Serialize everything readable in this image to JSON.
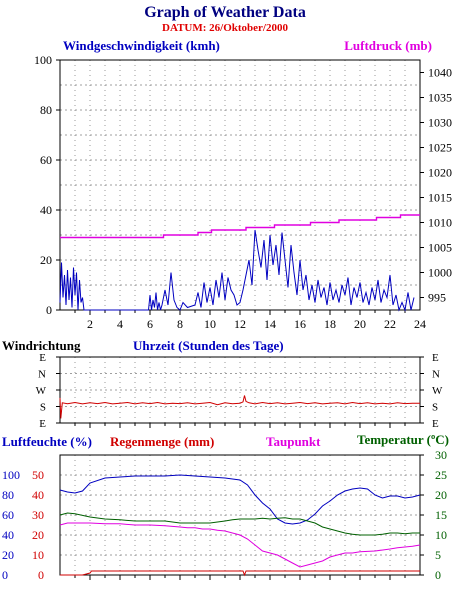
{
  "header": {
    "title": "Graph of Weather Data",
    "subtitle": "DATUM: 26/Oktober/2000"
  },
  "colors": {
    "title": "#000080",
    "subtitle": "#e00000",
    "wind": "#0000c0",
    "pressure": "#e000e0",
    "winddir": "#d00000",
    "humidity": "#0000c0",
    "rain": "#d00000",
    "dewpoint": "#e000e0",
    "temperature": "#006000",
    "grid": "#808080",
    "axis": "#000000"
  },
  "chart_data": [
    {
      "id": "wind_pressure",
      "type": "line",
      "title": "Graph of Weather Data",
      "subtitle": "DATUM: 26/Oktober/2000",
      "xlabel": "Uhrzeit (Stunden des Tage)",
      "xlim": [
        0,
        24
      ],
      "x_ticks": [
        "2",
        "4",
        "6",
        "8",
        "10",
        "12",
        "14",
        "16",
        "18",
        "20",
        "22",
        "24"
      ],
      "grid": true,
      "y_left": {
        "label": "Windgeschwindigkeit (kmh)",
        "range": [
          0,
          100
        ],
        "ticks": [
          "0",
          "20",
          "40",
          "60",
          "80",
          "100"
        ]
      },
      "y_right": {
        "label": "Luftdruck (mb)",
        "range": [
          992.5,
          1042.5
        ],
        "ticks": [
          "995",
          "1000",
          "1005",
          "1010",
          "1015",
          "1020",
          "1025",
          "1030",
          "1035",
          "1040"
        ]
      },
      "series": [
        {
          "name": "Windgeschwindigkeit (kmh)",
          "axis": "left",
          "color": "wind",
          "x": [
            0.0,
            0.1,
            0.2,
            0.3,
            0.4,
            0.5,
            0.6,
            0.7,
            0.8,
            0.9,
            1.0,
            1.1,
            1.2,
            1.3,
            1.4,
            1.5,
            1.6,
            2.0,
            3.0,
            4.0,
            5.0,
            5.9,
            6.0,
            6.1,
            6.2,
            6.3,
            6.4,
            6.5,
            6.6,
            6.7,
            6.8,
            7.0,
            7.2,
            7.4,
            7.6,
            7.8,
            8.0,
            8.2,
            8.5,
            9.0,
            9.2,
            9.4,
            9.6,
            9.8,
            10.0,
            10.2,
            10.4,
            10.6,
            10.8,
            11.0,
            11.2,
            11.4,
            11.6,
            11.8,
            12.0,
            12.2,
            12.4,
            12.6,
            12.8,
            13.0,
            13.2,
            13.4,
            13.6,
            13.8,
            14.0,
            14.2,
            14.4,
            14.6,
            14.8,
            15.0,
            15.2,
            15.4,
            15.6,
            15.8,
            16.0,
            16.2,
            16.4,
            16.6,
            16.8,
            17.0,
            17.2,
            17.4,
            17.6,
            17.8,
            18.0,
            18.2,
            18.4,
            18.6,
            18.8,
            19.0,
            19.2,
            19.4,
            19.6,
            19.8,
            20.0,
            20.2,
            20.4,
            20.6,
            20.8,
            21.0,
            21.2,
            21.4,
            21.6,
            21.8,
            22.0,
            22.2,
            22.4,
            22.6,
            22.8,
            23.0,
            23.2,
            23.4,
            23.6
          ],
          "values": [
            3,
            19,
            5,
            14,
            2,
            16,
            4,
            13,
            1,
            17,
            6,
            15,
            0,
            12,
            3,
            5,
            0,
            0,
            0,
            0,
            0,
            0,
            6,
            0,
            4,
            1,
            7,
            0,
            3,
            0,
            2,
            8,
            2,
            15,
            4,
            1,
            0,
            3,
            1,
            2,
            7,
            1,
            11,
            3,
            9,
            2,
            12,
            5,
            15,
            4,
            13,
            8,
            6,
            2,
            3,
            8,
            14,
            20,
            10,
            32,
            24,
            17,
            28,
            12,
            30,
            18,
            26,
            14,
            31,
            20,
            9,
            26,
            15,
            6,
            20,
            8,
            14,
            4,
            10,
            3,
            12,
            5,
            9,
            2,
            11,
            4,
            8,
            3,
            10,
            6,
            13,
            2,
            9,
            5,
            11,
            3,
            7,
            2,
            9,
            4,
            12,
            3,
            8,
            5,
            14,
            2,
            6,
            0,
            3,
            0,
            7,
            0,
            5
          ]
        },
        {
          "name": "Luftdruck (mb)",
          "axis": "right",
          "color": "pressure",
          "x": [
            0,
            6.9,
            6.9,
            9.2,
            9.2,
            10.1,
            10.1,
            12.4,
            12.4,
            14.3,
            14.3,
            16.7,
            16.7,
            18.6,
            18.6,
            21.1,
            21.1,
            22.7,
            22.7,
            24
          ],
          "values": [
            1007.0,
            1007.0,
            1007.5,
            1007.5,
            1008.0,
            1008.0,
            1008.5,
            1008.5,
            1009.0,
            1009.0,
            1009.5,
            1009.5,
            1010.0,
            1010.0,
            1010.5,
            1010.5,
            1011.0,
            1011.0,
            1011.5,
            1011.5
          ]
        }
      ]
    },
    {
      "id": "wind_direction",
      "type": "line",
      "ylabel": "Windrichtung",
      "categories_y": [
        "N",
        "W",
        "S",
        "E"
      ],
      "y_ticks": [
        "E",
        "N",
        "W",
        "S",
        "E"
      ],
      "xlim": [
        0,
        24
      ],
      "grid": true,
      "series": [
        {
          "name": "Windrichtung",
          "color": "winddir",
          "x": [
            0.0,
            0.05,
            0.15,
            0.5,
            1.0,
            1.5,
            2.0,
            2.5,
            3.0,
            3.5,
            4.0,
            4.5,
            5.0,
            5.5,
            6.0,
            6.5,
            7.0,
            7.5,
            8.0,
            8.5,
            9.0,
            9.5,
            10.0,
            10.5,
            11.0,
            11.5,
            12.0,
            12.2,
            12.3,
            12.4,
            12.6,
            13.0,
            13.5,
            14.0,
            14.5,
            15.0,
            15.5,
            16.0,
            16.5,
            17.0,
            17.5,
            18.0,
            18.5,
            19.0,
            19.5,
            20.0,
            20.5,
            21.0,
            21.5,
            22.0,
            22.5,
            23.0,
            23.5,
            24.0
          ],
          "values": [
            137,
            25,
            110,
            105,
            112,
            104,
            110,
            106,
            112,
            104,
            108,
            112,
            104,
            110,
            106,
            112,
            104,
            108,
            106,
            110,
            104,
            108,
            112,
            100,
            110,
            105,
            108,
            115,
            150,
            118,
            110,
            104,
            112,
            106,
            110,
            104,
            108,
            112,
            106,
            110,
            104,
            108,
            110,
            104,
            112,
            106,
            110,
            104,
            108,
            104,
            110,
            106,
            108,
            108
          ]
        }
      ]
    },
    {
      "id": "humidity_rain_dew_temp",
      "type": "line",
      "xlim": [
        0,
        24
      ],
      "grid": true,
      "axes": {
        "humidity": {
          "label": "Luftfeuchte (%)",
          "range": [
            0,
            120
          ],
          "ticks": [
            "0",
            "20",
            "40",
            "60",
            "80",
            "100"
          ]
        },
        "rain": {
          "label": "Regenmenge (mm)",
          "range": [
            0,
            60
          ],
          "ticks": [
            "0",
            "10",
            "20",
            "30",
            "40",
            "50"
          ]
        },
        "dewpoint": {
          "label": "Taupunkt"
        },
        "temperature": {
          "label": "Temperatur (ºC)",
          "range": [
            0,
            30
          ],
          "ticks": [
            "0",
            "5",
            "10",
            "15",
            "20",
            "25",
            "30"
          ]
        }
      },
      "series": [
        {
          "name": "Luftfeuchte (%)",
          "axis": "humidity",
          "color": "humidity",
          "x": [
            0,
            0.5,
            1,
            1.5,
            2,
            3,
            4,
            5,
            6,
            7,
            8,
            9,
            10,
            11,
            12,
            12.5,
            13,
            13.5,
            14,
            14.5,
            15,
            15.5,
            16,
            16.5,
            17,
            17.5,
            18,
            18.5,
            19,
            19.5,
            20,
            20.5,
            21,
            21.5,
            22,
            22.5,
            23,
            23.5,
            24
          ],
          "values": [
            85,
            83,
            82,
            84,
            92,
            97,
            98,
            99,
            99,
            99,
            100,
            99,
            98,
            97,
            95,
            90,
            80,
            72,
            66,
            56,
            52,
            51,
            52,
            55,
            61,
            69,
            74,
            80,
            84,
            86,
            87,
            86,
            80,
            77,
            79,
            79,
            77,
            78,
            80
          ]
        },
        {
          "name": "Regenmenge (mm)",
          "axis": "rain",
          "color": "rain",
          "x": [
            0,
            1.5,
            2.0,
            2.1,
            3,
            6,
            8,
            10,
            12.2,
            12.3,
            12.4,
            14,
            16,
            18,
            20,
            22,
            24
          ],
          "values": [
            0,
            0,
            1,
            2,
            2,
            2,
            2,
            2,
            2,
            0,
            2,
            2,
            2,
            2,
            2,
            2,
            2
          ]
        },
        {
          "name": "Taupunkt",
          "axis": "temperature",
          "color": "dewpoint",
          "x": [
            0,
            0.5,
            1,
            2,
            3,
            4,
            5,
            6,
            7,
            8,
            8.5,
            9,
            9.5,
            10,
            10.5,
            11,
            11.5,
            12,
            12.5,
            13,
            13.5,
            14,
            14.5,
            15,
            15.5,
            16,
            16.5,
            17,
            17.5,
            18,
            18.5,
            19,
            19.5,
            20,
            21,
            22,
            22.5,
            23,
            23.5,
            24
          ],
          "values": [
            12.5,
            13.0,
            13.0,
            13.0,
            12.8,
            12.8,
            12.5,
            12.5,
            12.3,
            12.0,
            11.8,
            11.8,
            11.5,
            11.5,
            11.2,
            11.0,
            10.5,
            10.0,
            9.0,
            7.5,
            6.0,
            5.5,
            5.0,
            4.0,
            3.0,
            2.0,
            2.5,
            3.0,
            3.5,
            4.5,
            5.0,
            5.5,
            5.5,
            5.8,
            6.0,
            6.5,
            6.8,
            7.0,
            7.2,
            7.5
          ]
        },
        {
          "name": "Temperatur (ºC)",
          "axis": "temperature",
          "color": "temperature",
          "x": [
            0,
            0.5,
            1,
            2,
            3,
            4,
            5,
            6,
            7,
            8,
            9,
            10,
            11,
            11.5,
            12,
            12.5,
            13,
            13.5,
            14,
            14.5,
            15,
            15.5,
            16,
            16.5,
            17,
            17.5,
            18,
            18.5,
            19,
            19.5,
            20,
            20.5,
            21,
            21.5,
            22,
            22.5,
            23,
            23.5,
            24
          ],
          "values": [
            15.0,
            15.5,
            15.3,
            14.5,
            14.0,
            13.8,
            13.5,
            13.5,
            13.5,
            13.0,
            13.0,
            13.0,
            13.5,
            13.8,
            14.0,
            14.0,
            14.0,
            14.2,
            14.0,
            14.2,
            14.3,
            14.0,
            14.0,
            13.5,
            13.0,
            12.0,
            11.5,
            11.0,
            10.5,
            10.2,
            10.0,
            10.0,
            10.0,
            10.2,
            10.5,
            10.5,
            10.3,
            10.5,
            10.5
          ]
        }
      ]
    }
  ]
}
